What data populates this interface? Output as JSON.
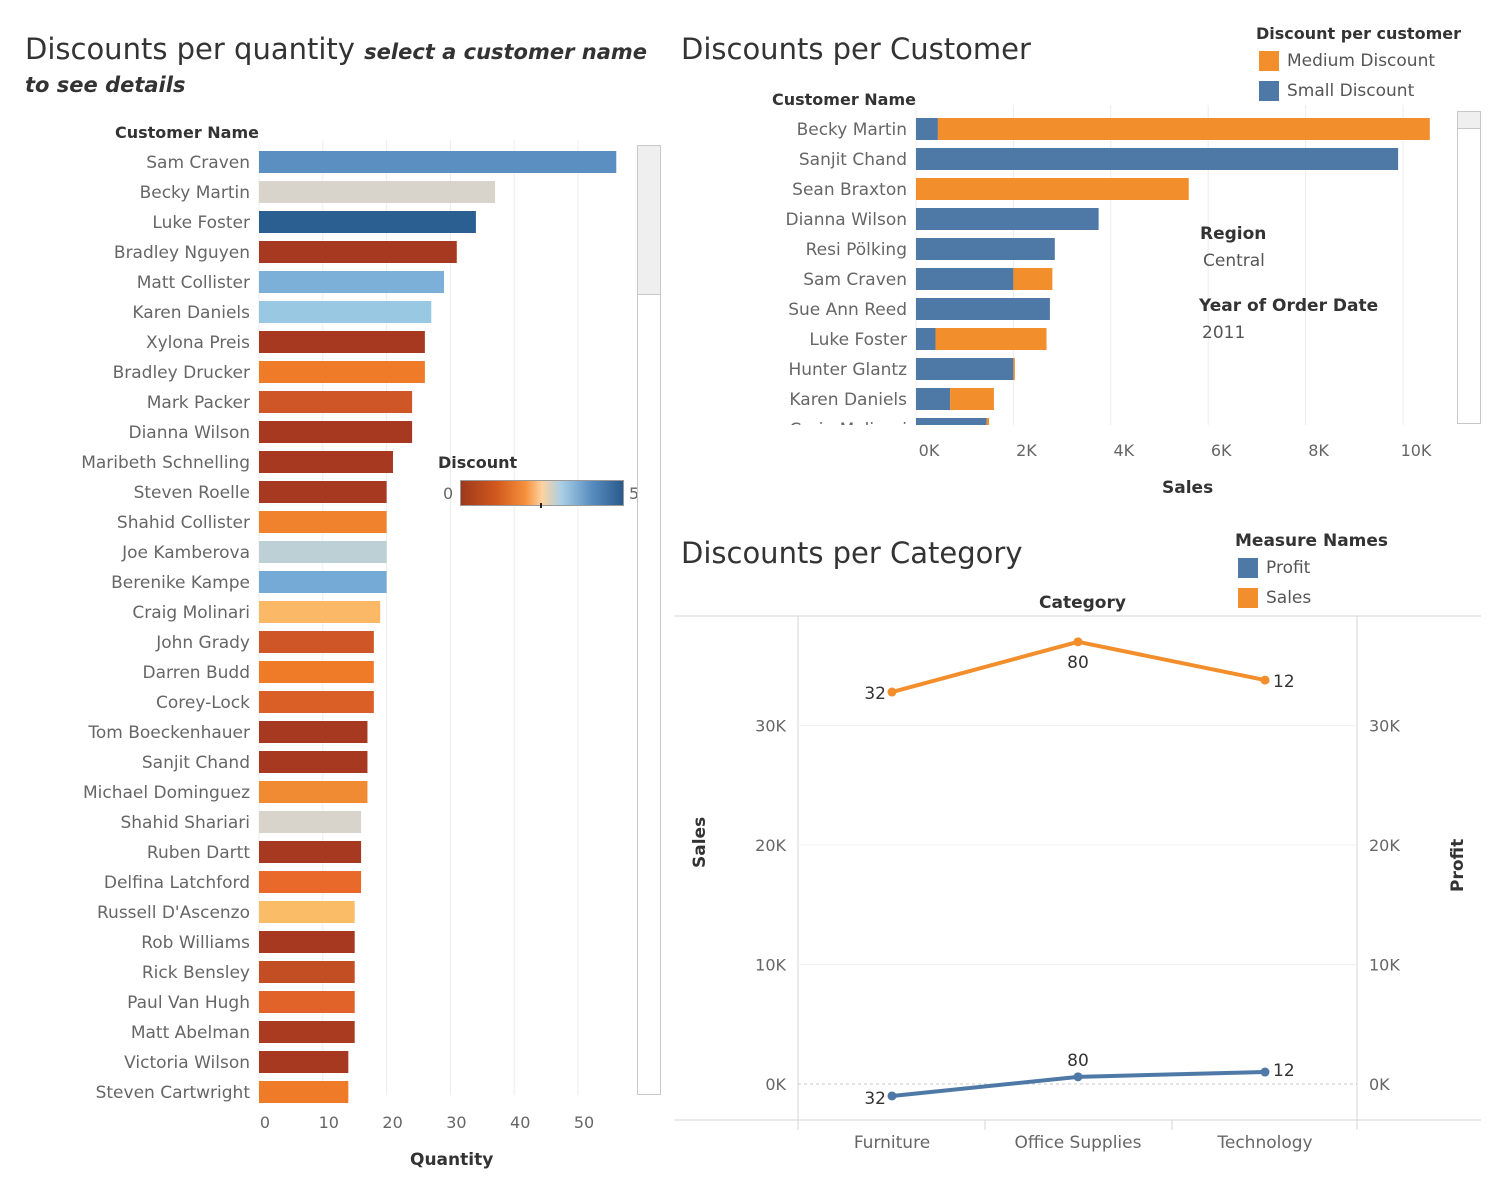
{
  "sheet1": {
    "title": "Discounts per quantity",
    "subtitle_a": "select a customer name",
    "subtitle_b": "to see details",
    "row_header": "Customer Name",
    "x_label": "Quantity",
    "legend_title": "Discount",
    "legend_min": "0",
    "legend_max": "5"
  },
  "sheet2": {
    "title": "Discounts per Customer",
    "row_header": "Customer Name",
    "x_label": "Sales",
    "legend_title": "Discount per customer",
    "legend_items": [
      "Medium Discount",
      "Small Discount"
    ],
    "filter_region_label": "Region",
    "filter_region_value": "Central",
    "filter_year_label": "Year of Order Date",
    "filter_year_value": "2011"
  },
  "sheet3": {
    "title": "Discounts per Category",
    "column_header": "Category",
    "left_axis_label": "Sales",
    "right_axis_label": "Profit",
    "legend_title": "Measure Names",
    "legend_items": [
      "Profit",
      "Sales"
    ]
  },
  "chart_data": [
    {
      "type": "bar",
      "title": "Discounts per quantity",
      "xlabel": "Quantity",
      "ylabel": "Customer Name",
      "xlim": [
        0,
        60
      ],
      "x_ticks": [
        "0",
        "10",
        "20",
        "30",
        "40",
        "50"
      ],
      "color_legend": {
        "title": "Discount",
        "min": 0,
        "max": 5
      },
      "categories": [
        "Sam Craven",
        "Becky Martin",
        "Luke Foster",
        "Bradley Nguyen",
        "Matt Collister",
        "Karen Daniels",
        "Xylona Preis",
        "Bradley Drucker",
        "Mark Packer",
        "Dianna Wilson",
        "Maribeth Schnelling",
        "Steven Roelle",
        "Shahid Collister",
        "Joe Kamberova",
        "Berenike Kampe",
        "Craig Molinari",
        "John Grady",
        "Darren Budd",
        "Corey-Lock",
        "Tom Boeckenhauer",
        "Sanjit Chand",
        "Michael Dominguez",
        "Shahid Shariari",
        "Ruben Dartt",
        "Delfina Latchford",
        "Russell D'Ascenzo",
        "Rob Williams",
        "Rick Bensley",
        "Paul Van Hugh",
        "Matt Abelman",
        "Victoria Wilson",
        "Steven Cartwright"
      ],
      "values": [
        56,
        37,
        34,
        31,
        29,
        27,
        26,
        26,
        24,
        24,
        21,
        20,
        20,
        20,
        20,
        19,
        18,
        18,
        18,
        17,
        17,
        17,
        16,
        16,
        16,
        15,
        15,
        15,
        15,
        15,
        14,
        14
      ],
      "colors": [
        "#5b8fc1",
        "#d9d4cb",
        "#2b5f91",
        "#a6391f",
        "#7db0d8",
        "#99c8e3",
        "#a6391f",
        "#ef7a27",
        "#cf5626",
        "#a6391f",
        "#a6391f",
        "#a6391f",
        "#f0812d",
        "#bdd0d6",
        "#75a9d6",
        "#fbb866",
        "#cf5626",
        "#ef7a27",
        "#d95f26",
        "#a6391f",
        "#a6391f",
        "#f08a33",
        "#d9d4cb",
        "#a6391f",
        "#e8692a",
        "#fbbc67",
        "#a6391f",
        "#c44e23",
        "#e2632a",
        "#ab3b20",
        "#a6391f",
        "#ef7a27"
      ]
    },
    {
      "type": "bar",
      "stacked": true,
      "title": "Discounts per Customer",
      "xlabel": "Sales",
      "ylabel": "Customer Name",
      "xlim": [
        0,
        11000
      ],
      "x_ticks": [
        "0K",
        "2K",
        "4K",
        "6K",
        "8K",
        "10K"
      ],
      "categories": [
        "Becky Martin",
        "Sanjit Chand",
        "Sean Braxton",
        "Dianna Wilson",
        "Resi Pölking",
        "Sam Craven",
        "Sue Ann Reed",
        "Luke Foster",
        "Hunter Glantz",
        "Karen Daniels",
        "Craig Molinari"
      ],
      "series": [
        {
          "name": "Small Discount",
          "values": [
            450,
            9900,
            0,
            3750,
            2850,
            2000,
            2750,
            400,
            2000,
            700,
            1450
          ]
        },
        {
          "name": "Medium Discount",
          "values": [
            10100,
            0,
            5600,
            0,
            0,
            800,
            0,
            2280,
            30,
            900,
            50
          ]
        }
      ]
    },
    {
      "type": "line",
      "title": "Discounts per Category",
      "xlabel": "Category",
      "categories": [
        "Furniture",
        "Office Supplies",
        "Technology"
      ],
      "ylabel_left": "Sales",
      "ylabel_right": "Profit",
      "y_ticks_left": [
        "0K",
        "10K",
        "20K",
        "30K"
      ],
      "y_ticks_right": [
        "0K",
        "10K",
        "20K",
        "30K"
      ],
      "ylim": [
        -1500,
        39000
      ],
      "series": [
        {
          "name": "Sales",
          "values": [
            32800,
            37000,
            33800
          ],
          "labels": [
            "32",
            "80",
            "12"
          ]
        },
        {
          "name": "Profit",
          "values": [
            -1000,
            600,
            1000
          ],
          "labels": [
            "32",
            "80",
            "12"
          ]
        }
      ]
    }
  ]
}
